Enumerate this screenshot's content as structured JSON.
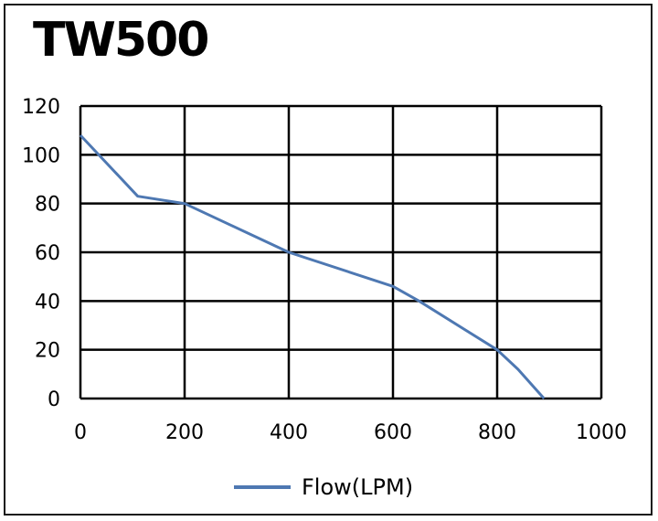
{
  "chart_data": {
    "type": "line",
    "title": "TW500",
    "xlabel": "",
    "ylabel": "",
    "xlim": [
      0,
      1000
    ],
    "ylim": [
      0,
      120
    ],
    "x_ticks": [
      "0",
      "200",
      "400",
      "600",
      "800",
      "1000"
    ],
    "y_ticks": [
      "0",
      "20",
      "40",
      "60",
      "80",
      "100",
      "120"
    ],
    "grid": true,
    "legend_position": "bottom-center",
    "series": [
      {
        "name": "Flow(LPM)",
        "color": "#4e78b2",
        "points": [
          {
            "x": 0,
            "y": 108
          },
          {
            "x": 110,
            "y": 83
          },
          {
            "x": 200,
            "y": 80
          },
          {
            "x": 400,
            "y": 60
          },
          {
            "x": 600,
            "y": 46
          },
          {
            "x": 650,
            "y": 40
          },
          {
            "x": 800,
            "y": 20
          },
          {
            "x": 840,
            "y": 12
          },
          {
            "x": 890,
            "y": 0
          }
        ]
      }
    ]
  }
}
